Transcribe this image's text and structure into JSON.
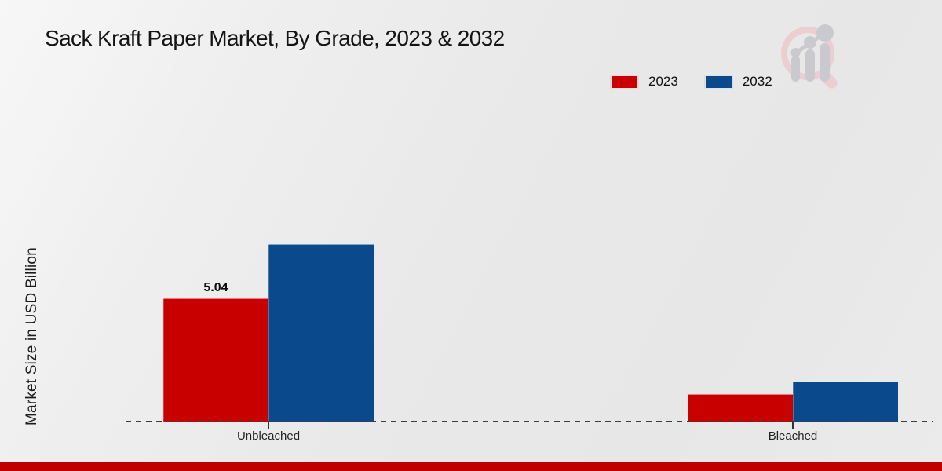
{
  "header": {
    "title": "Sack Kraft Paper Market, By Grade, 2023 & 2032"
  },
  "watermark": {
    "icon": "magnifier-bar-chart-logo",
    "ring_color": "#eccdce",
    "bars_color": "#c9c9cd"
  },
  "footer": {
    "stripe_color": "#c00000"
  },
  "chart_data": {
    "type": "bar",
    "title": "Sack Kraft Paper Market, By Grade, 2023 & 2032",
    "xlabel": "",
    "ylabel": "Market Size in USD Billion",
    "categories": [
      "Unbleached",
      "Bleached"
    ],
    "series": [
      {
        "name": "2023",
        "color": "#c80000",
        "values": [
          5.04,
          1.12
        ]
      },
      {
        "name": "2032",
        "color": "#0a4a8c",
        "values": [
          7.26,
          1.64
        ]
      }
    ],
    "value_labels": [
      {
        "series_index": 0,
        "category_index": 0,
        "text": "5.04"
      }
    ],
    "ylim": [
      0,
      8.5
    ],
    "grid": false,
    "legend_position": "top-right",
    "baseline_style": "dashed",
    "axis_color": "#3d3d3d"
  }
}
